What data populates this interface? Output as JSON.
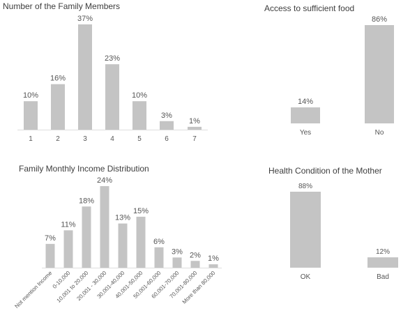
{
  "chart_data": [
    {
      "type": "bar",
      "title": "Number of the Family Members",
      "categories": [
        "1",
        "2",
        "3",
        "4",
        "5",
        "6",
        "7"
      ],
      "values": [
        10,
        16,
        37,
        23,
        10,
        3,
        1
      ],
      "value_labels": [
        "10%",
        "16%",
        "37%",
        "23%",
        "10%",
        "3%",
        "1%"
      ],
      "unit": "%",
      "grid": false,
      "bar_color": "#c4c4c4"
    },
    {
      "type": "bar",
      "title": "Access to sufficient food",
      "categories": [
        "Yes",
        "No"
      ],
      "values": [
        14,
        86
      ],
      "value_labels": [
        "14%",
        "86%"
      ],
      "unit": "%",
      "grid": false,
      "bar_color": "#c4c4c4"
    },
    {
      "type": "bar",
      "title": "Family Monthly Income Distribution",
      "categories": [
        "Not mention Income",
        "0-10,000",
        "10,001 to 20,000",
        "20,001 - 30,000",
        "30,001-40,000",
        "40,001-50,000",
        "50,001-60,000",
        "60,001-70,000",
        "70,001-80,000",
        "More than 80,000"
      ],
      "values": [
        7,
        11,
        18,
        24,
        13,
        15,
        6,
        3,
        2,
        1
      ],
      "value_labels": [
        "7%",
        "11%",
        "18%",
        "24%",
        "13%",
        "15%",
        "6%",
        "3%",
        "2%",
        "1%"
      ],
      "unit": "%",
      "grid": false,
      "bar_color": "#c4c4c4"
    },
    {
      "type": "bar",
      "title": "Health Condition of the Mother",
      "categories": [
        "OK",
        "Bad"
      ],
      "values": [
        88,
        12
      ],
      "value_labels": [
        "88%",
        "12%"
      ],
      "unit": "%",
      "grid": false,
      "bar_color": "#c4c4c4"
    }
  ]
}
